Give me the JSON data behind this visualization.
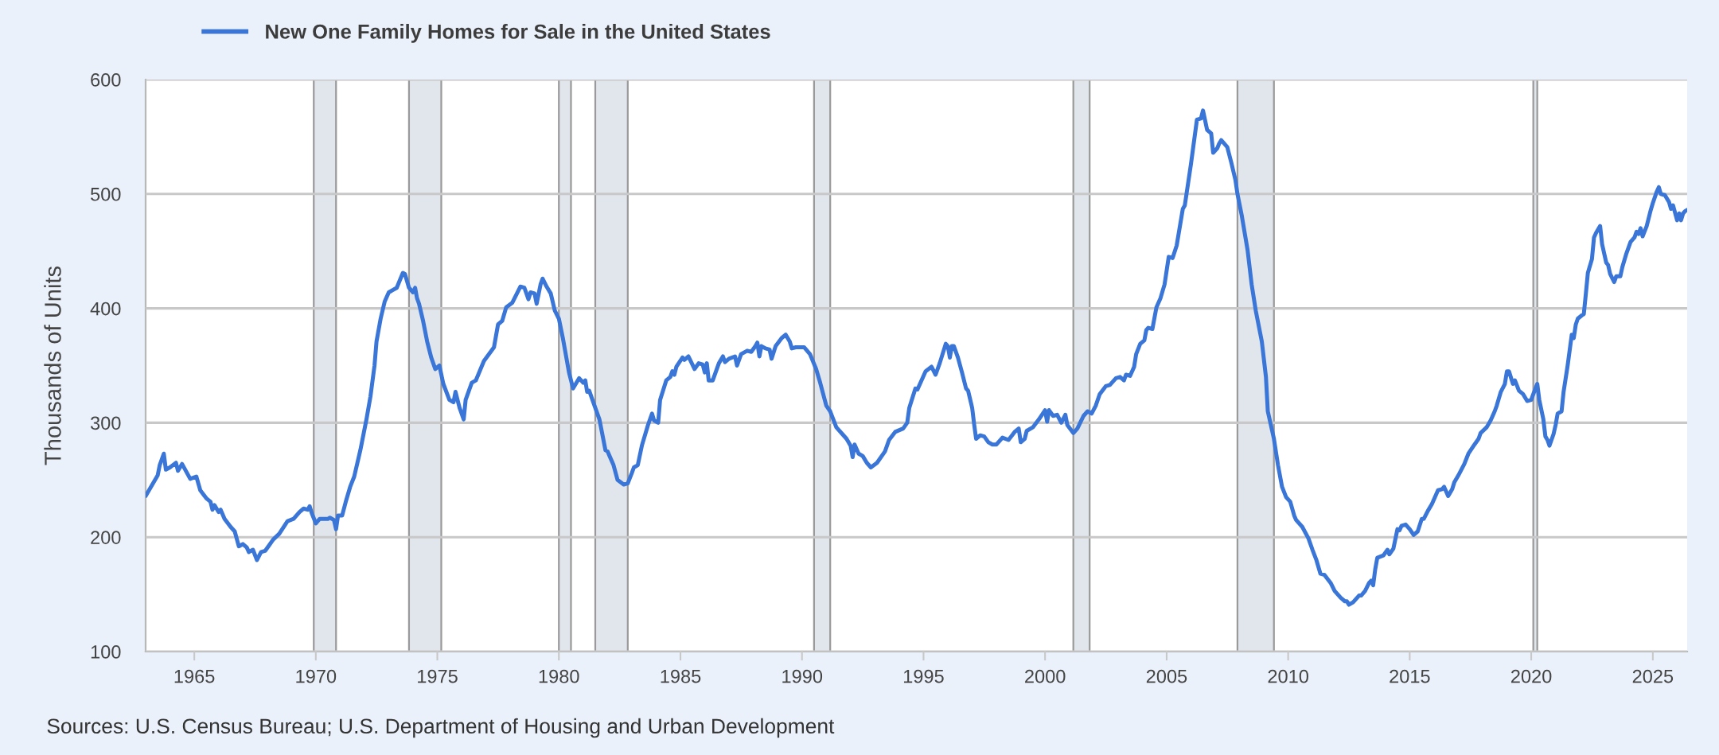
{
  "chart_data": {
    "type": "line",
    "ylabel": "Thousands of Units",
    "annotations": [
      "Sources: U.S. Census Bureau; U.S. Department of Housing and Urban Development"
    ],
    "xlim": [
      "1963-01",
      "2026-06"
    ],
    "xticks": [
      {
        "value": "1965-01",
        "label": "1965"
      },
      {
        "value": "1970-01",
        "label": "1970"
      },
      {
        "value": "1975-01",
        "label": "1975"
      },
      {
        "value": "1980-01",
        "label": "1980"
      },
      {
        "value": "1985-01",
        "label": "1985"
      },
      {
        "value": "1990-01",
        "label": "1990"
      },
      {
        "value": "1995-01",
        "label": "1995"
      },
      {
        "value": "2000-01",
        "label": "2000"
      },
      {
        "value": "2005-01",
        "label": "2005"
      },
      {
        "value": "2010-01",
        "label": "2010"
      },
      {
        "value": "2015-01",
        "label": "2015"
      },
      {
        "value": "2020-01",
        "label": "2020"
      },
      {
        "value": "2025-01",
        "label": "2025"
      }
    ],
    "ylim": [
      100,
      600
    ],
    "yticks": [
      100,
      200,
      300,
      400,
      500,
      600
    ],
    "grid": "y",
    "legend": "top left",
    "bands": [
      {
        "axis": "x",
        "from": "1969-12",
        "to": "1970-11",
        "color": "#e1e5ec"
      },
      {
        "axis": "x",
        "from": "1973-11",
        "to": "1975-03",
        "color": "#e1e5ec"
      },
      {
        "axis": "x",
        "from": "1980-01",
        "to": "1980-07",
        "color": "#e1e5ec"
      },
      {
        "axis": "x",
        "from": "1981-07",
        "to": "1982-11",
        "color": "#e1e5ec"
      },
      {
        "axis": "x",
        "from": "1990-07",
        "to": "1991-03",
        "color": "#e1e5ec"
      },
      {
        "axis": "x",
        "from": "2001-03",
        "to": "2001-11",
        "color": "#e1e5ec"
      },
      {
        "axis": "x",
        "from": "2007-12",
        "to": "2009-06",
        "color": "#e1e5ec"
      },
      {
        "axis": "x",
        "from": "2020-02",
        "to": "2020-04",
        "color": "#e1e5ec"
      }
    ],
    "series": [
      {
        "name": "New One Family Homes for Sale in the United States",
        "color": "#3a75d8",
        "x": [
          "1963-01",
          "1963-05",
          "1963-07",
          "1963-08",
          "1963-10",
          "1963-11",
          "1964-01",
          "1964-04",
          "1964-05",
          "1964-07",
          "1964-11",
          "1965-02",
          "1965-04",
          "1965-07",
          "1965-09",
          "1965-10",
          "1965-11",
          "1966-01",
          "1966-02",
          "1966-04",
          "1966-07",
          "1966-09",
          "1966-11",
          "1967-01",
          "1967-03",
          "1967-04",
          "1967-06",
          "1967-08",
          "1967-10",
          "1967-12",
          "1968-02",
          "1968-04",
          "1968-07",
          "1968-11",
          "1969-02",
          "1969-05",
          "1969-07",
          "1969-09",
          "1969-10",
          "1969-11",
          "1970-01",
          "1970-03",
          "1970-07",
          "1970-08",
          "1970-10",
          "1970-11",
          "1970-12",
          "1971-02",
          "1971-04",
          "1971-06",
          "1971-08",
          "1971-11",
          "1972-02",
          "1972-04",
          "1972-06",
          "1972-07",
          "1972-09",
          "1972-11",
          "1973-01",
          "1973-03",
          "1973-05",
          "1973-08",
          "1973-09",
          "1973-11",
          "1974-01",
          "1974-02",
          "1974-03",
          "1974-04",
          "1974-06",
          "1974-08",
          "1974-10",
          "1974-12",
          "1975-02",
          "1975-04",
          "1975-07",
          "1975-09",
          "1975-10",
          "1975-12",
          "1976-02",
          "1976-03",
          "1976-06",
          "1976-08",
          "1976-12",
          "1977-05",
          "1977-07",
          "1977-09",
          "1977-11",
          "1978-02",
          "1978-06",
          "1978-08",
          "1978-10",
          "1978-11",
          "1979-01",
          "1979-02",
          "1979-04",
          "1979-05",
          "1979-07",
          "1979-09",
          "1979-11",
          "1980-01",
          "1980-03",
          "1980-06",
          "1980-08",
          "1980-11",
          "1981-01",
          "1981-02",
          "1981-03",
          "1981-04",
          "1981-07",
          "1981-09",
          "1981-12",
          "1982-01",
          "1982-04",
          "1982-06",
          "1982-09",
          "1982-11",
          "1983-01",
          "1983-02",
          "1983-04",
          "1983-06",
          "1983-09",
          "1983-11",
          "1983-12",
          "1984-02",
          "1984-03",
          "1984-06",
          "1984-08",
          "1984-09",
          "1984-10",
          "1984-11",
          "1985-02",
          "1985-03",
          "1985-05",
          "1985-08",
          "1985-10",
          "1985-12",
          "1986-01",
          "1986-02",
          "1986-03",
          "1986-05",
          "1986-07",
          "1986-08",
          "1986-10",
          "1986-11",
          "1987-01",
          "1987-04",
          "1987-05",
          "1987-07",
          "1987-10",
          "1987-12",
          "1988-02",
          "1988-03",
          "1988-04",
          "1988-05",
          "1988-07",
          "1988-09",
          "1988-10",
          "1988-12",
          "1989-03",
          "1989-05",
          "1989-07",
          "1989-08",
          "1989-10",
          "1990-02",
          "1990-05",
          "1990-08",
          "1990-10",
          "1991-01",
          "1991-03",
          "1991-06",
          "1991-09",
          "1991-11",
          "1992-01",
          "1992-02",
          "1992-03",
          "1992-05",
          "1992-07",
          "1992-09",
          "1992-11",
          "1993-02",
          "1993-06",
          "1993-08",
          "1993-11",
          "1994-03",
          "1994-05",
          "1994-06",
          "1994-09",
          "1994-10",
          "1995-02",
          "1995-05",
          "1995-07",
          "1995-09",
          "1995-12",
          "1996-01",
          "1996-02",
          "1996-03",
          "1996-04",
          "1996-06",
          "1996-08",
          "1996-10",
          "1996-11",
          "1997-01",
          "1997-02",
          "1997-03",
          "1997-05",
          "1997-07",
          "1997-09",
          "1997-11",
          "1998-01",
          "1998-04",
          "1998-07",
          "1998-10",
          "1998-12",
          "1999-01",
          "1999-03",
          "1999-04",
          "1999-07",
          "1999-10",
          "2000-01",
          "2000-02",
          "2000-03",
          "2000-05",
          "2000-07",
          "2000-09",
          "2000-11",
          "2000-12",
          "2001-03",
          "2001-05",
          "2001-08",
          "2001-10",
          "2001-12",
          "2002-02",
          "2002-04",
          "2002-07",
          "2002-09",
          "2002-12",
          "2003-02",
          "2003-04",
          "2003-05",
          "2003-07",
          "2003-09",
          "2003-10",
          "2003-12",
          "2004-02",
          "2004-03",
          "2004-04",
          "2004-06",
          "2004-08",
          "2004-10",
          "2004-12",
          "2005-02",
          "2005-04",
          "2005-06",
          "2005-09",
          "2005-10",
          "2006-01",
          "2006-04",
          "2006-06",
          "2006-07",
          "2006-09",
          "2006-11",
          "2006-12",
          "2007-02",
          "2007-03",
          "2007-04",
          "2007-07",
          "2007-09",
          "2007-11",
          "2007-12",
          "2008-02",
          "2008-05",
          "2008-07",
          "2008-09",
          "2008-12",
          "2009-02",
          "2009-03",
          "2009-06",
          "2009-08",
          "2009-10",
          "2009-12",
          "2010-02",
          "2010-04",
          "2010-05",
          "2010-08",
          "2010-11",
          "2011-01",
          "2011-03",
          "2011-05",
          "2011-07",
          "2011-10",
          "2011-12",
          "2012-03",
          "2012-05",
          "2012-06",
          "2012-07",
          "2012-09",
          "2012-12",
          "2013-01",
          "2013-03",
          "2013-05",
          "2013-06",
          "2013-07",
          "2013-08",
          "2013-09",
          "2013-12",
          "2014-02",
          "2014-03",
          "2014-05",
          "2014-07",
          "2014-08",
          "2014-09",
          "2014-11",
          "2015-01",
          "2015-03",
          "2015-05",
          "2015-07",
          "2015-08",
          "2015-10",
          "2015-12",
          "2016-03",
          "2016-05",
          "2016-06",
          "2016-08",
          "2016-10",
          "2016-11",
          "2017-01",
          "2017-04",
          "2017-06",
          "2017-09",
          "2017-11",
          "2017-12",
          "2018-03",
          "2018-05",
          "2018-07",
          "2018-08",
          "2018-10",
          "2018-12",
          "2019-01",
          "2019-02",
          "2019-04",
          "2019-05",
          "2019-07",
          "2019-09",
          "2019-11",
          "2020-01",
          "2020-02",
          "2020-04",
          "2020-05",
          "2020-07",
          "2020-08",
          "2020-09",
          "2020-10",
          "2020-12",
          "2021-01",
          "2021-02",
          "2021-04",
          "2021-05",
          "2021-07",
          "2021-09",
          "2021-10",
          "2021-11",
          "2021-12",
          "2022-02",
          "2022-03",
          "2022-04",
          "2022-05",
          "2022-07",
          "2022-08",
          "2022-09",
          "2022-11",
          "2022-12",
          "2023-02",
          "2023-03",
          "2023-04",
          "2023-06",
          "2023-07",
          "2023-09",
          "2023-10",
          "2023-12",
          "2024-02",
          "2024-04",
          "2024-05",
          "2024-06",
          "2024-07",
          "2024-08",
          "2024-10",
          "2024-12",
          "2025-01",
          "2025-03",
          "2025-04",
          "2025-05",
          "2025-07",
          "2025-09",
          "2025-10",
          "2025-11",
          "2026-01",
          "2026-02",
          "2026-03",
          "2026-04",
          "2026-05",
          "2026-06"
        ],
        "values": [
          236,
          248,
          254,
          263,
          273,
          259,
          261,
          265,
          258,
          264,
          251,
          253,
          241,
          234,
          231,
          224,
          228,
          222,
          224,
          216,
          209,
          205,
          192,
          194,
          191,
          187,
          189,
          180,
          187,
          188,
          193,
          198,
          203,
          214,
          216,
          222,
          225,
          224,
          227,
          221,
          212,
          216,
          216,
          217,
          215,
          207,
          219,
          219,
          232,
          244,
          253,
          276,
          303,
          323,
          350,
          371,
          391,
          406,
          414,
          416,
          418,
          431,
          430,
          418,
          414,
          418,
          409,
          404,
          389,
          371,
          357,
          347,
          350,
          334,
          320,
          318,
          327,
          313,
          303,
          320,
          335,
          337,
          354,
          366,
          386,
          389,
          401,
          405,
          419,
          418,
          408,
          414,
          413,
          404,
          421,
          426,
          419,
          413,
          398,
          391,
          374,
          344,
          330,
          339,
          335,
          337,
          327,
          328,
          313,
          303,
          276,
          275,
          263,
          250,
          246,
          247,
          256,
          261,
          263,
          280,
          298,
          308,
          302,
          300,
          320,
          337,
          340,
          345,
          342,
          349,
          357,
          355,
          358,
          347,
          352,
          351,
          344,
          352,
          337,
          337,
          347,
          352,
          358,
          353,
          356,
          358,
          350,
          360,
          363,
          362,
          367,
          370,
          358,
          367,
          365,
          364,
          356,
          367,
          374,
          377,
          371,
          365,
          366,
          366,
          360,
          347,
          335,
          315,
          310,
          296,
          290,
          286,
          280,
          270,
          281,
          273,
          271,
          265,
          261,
          265,
          275,
          285,
          292,
          295,
          300,
          313,
          330,
          329,
          345,
          349,
          342,
          352,
          369,
          367,
          357,
          367,
          367,
          357,
          344,
          330,
          328,
          313,
          298,
          286,
          289,
          288,
          283,
          281,
          281,
          287,
          285,
          292,
          295,
          283,
          286,
          293,
          296,
          303,
          311,
          301,
          311,
          306,
          307,
          300,
          307,
          298,
          291,
          295,
          306,
          310,
          308,
          315,
          325,
          332,
          333,
          339,
          340,
          337,
          342,
          341,
          349,
          360,
          369,
          372,
          381,
          383,
          382,
          401,
          409,
          421,
          445,
          444,
          455,
          487,
          490,
          526,
          565,
          566,
          573,
          556,
          553,
          536,
          540,
          544,
          547,
          541,
          527,
          512,
          500,
          482,
          451,
          421,
          398,
          371,
          340,
          310,
          286,
          263,
          244,
          235,
          231,
          219,
          215,
          209,
          199,
          189,
          180,
          168,
          167,
          160,
          153,
          147,
          144,
          144,
          141,
          143,
          149,
          149,
          153,
          160,
          162,
          158,
          172,
          182,
          184,
          189,
          185,
          190,
          207,
          206,
          210,
          211,
          207,
          202,
          205,
          216,
          216,
          223,
          229,
          241,
          242,
          244,
          236,
          242,
          248,
          254,
          264,
          273,
          281,
          286,
          291,
          296,
          302,
          310,
          315,
          327,
          334,
          345,
          345,
          334,
          337,
          328,
          325,
          319,
          320,
          325,
          334,
          320,
          303,
          288,
          285,
          280,
          290,
          298,
          308,
          310,
          327,
          350,
          377,
          374,
          386,
          391,
          394,
          395,
          413,
          431,
          443,
          462,
          466,
          472,
          456,
          440,
          438,
          430,
          423,
          428,
          428,
          436,
          448,
          458,
          462,
          467,
          465,
          470,
          463,
          472,
          486,
          492,
          502,
          506,
          500,
          499,
          493,
          487,
          490,
          477,
          483,
          477,
          483,
          485,
          486
        ]
      }
    ]
  }
}
